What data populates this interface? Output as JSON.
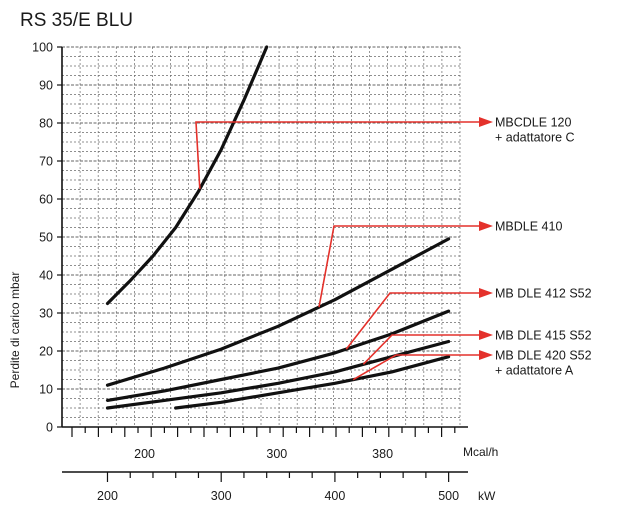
{
  "chart_data": {
    "type": "line",
    "title": "RS 35/E BLU",
    "ylabel": "Perdite di carico mbar",
    "ylim": [
      0,
      100
    ],
    "yticks": [
      0,
      10,
      20,
      30,
      40,
      50,
      60,
      70,
      80,
      90,
      100
    ],
    "x_primary": {
      "unit": "Mcal/h",
      "ticks": [
        200,
        300,
        380
      ]
    },
    "x_secondary": {
      "unit": "kW",
      "ticks": [
        200,
        300,
        400,
        500
      ]
    },
    "xlim_kw": [
      160,
      510
    ],
    "grid": true,
    "series": [
      {
        "name": "MBCDLE 120\n+ adattatore C",
        "x": [
          200,
          220,
          240,
          260,
          280,
          300,
          320,
          340
        ],
        "y": [
          32.5,
          38.5,
          45,
          52.5,
          62,
          73,
          86,
          100
        ]
      },
      {
        "name": "MBDLE 410",
        "x": [
          200,
          250,
          300,
          350,
          400,
          450,
          500
        ],
        "y": [
          11,
          15.5,
          20.5,
          26.5,
          33.5,
          41.5,
          49.5
        ]
      },
      {
        "name": "MB DLE 412 S52",
        "x": [
          200,
          250,
          300,
          350,
          400,
          450,
          500
        ],
        "y": [
          7,
          9.5,
          12.5,
          15.5,
          19.5,
          24.5,
          30.5
        ]
      },
      {
        "name": "MB DLE 415 S52",
        "x": [
          200,
          250,
          300,
          350,
          400,
          450,
          500
        ],
        "y": [
          5,
          7,
          9,
          11.5,
          14.5,
          18.5,
          22.5
        ]
      },
      {
        "name": "MB DLE 420 S52\n+ adattatore A",
        "x": [
          260,
          300,
          350,
          400,
          450,
          500
        ],
        "y": [
          5,
          6.5,
          9,
          11.5,
          14.5,
          18.5
        ]
      }
    ]
  }
}
